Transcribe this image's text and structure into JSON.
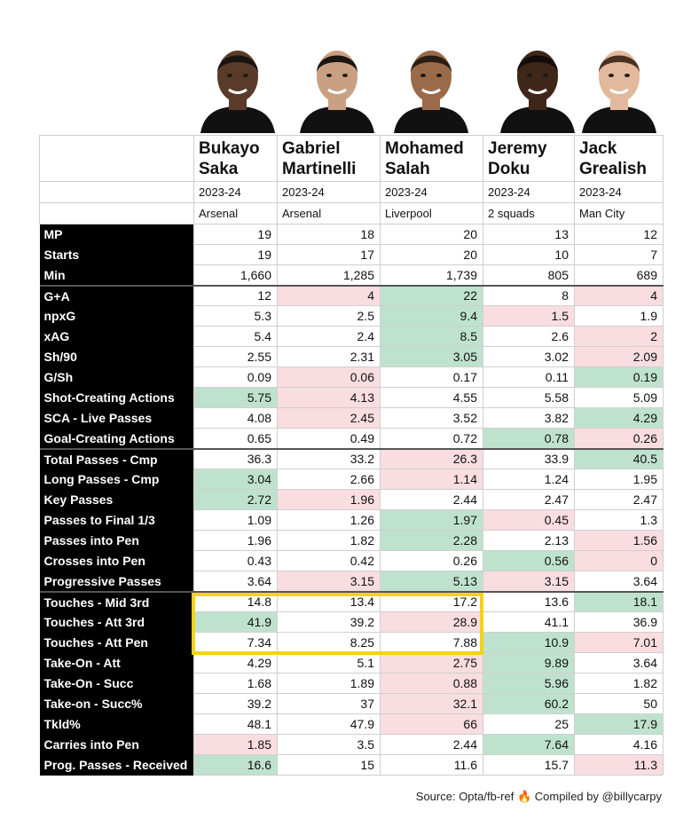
{
  "players": [
    {
      "first": "Bukayo",
      "last": "Saka",
      "season": "2023-24",
      "team": "Arsenal",
      "skin": "#5a3a28",
      "hair": "#1a1410"
    },
    {
      "first": "Gabriel",
      "last": "Martinelli",
      "season": "2023-24",
      "team": "Arsenal",
      "skin": "#c9a081",
      "hair": "#1c1510"
    },
    {
      "first": "Mohamed",
      "last": "Salah",
      "season": "2023-24",
      "team": "Liverpool",
      "skin": "#9b6a48",
      "hair": "#2a1d14"
    },
    {
      "first": "Jeremy",
      "last": "Doku",
      "season": "2023-24",
      "team": "2 squads",
      "skin": "#3e2619",
      "hair": "#120d0a"
    },
    {
      "first": "Jack",
      "last": "Grealish",
      "season": "2023-24",
      "team": "Man City",
      "skin": "#e2b99c",
      "hair": "#4a3020"
    }
  ],
  "groups": [
    {
      "rows": [
        {
          "label": "MP",
          "values": [
            "19",
            "18",
            "20",
            "13",
            "12"
          ],
          "shade": [
            "n",
            "n",
            "n",
            "n",
            "n"
          ]
        },
        {
          "label": "Starts",
          "values": [
            "19",
            "17",
            "20",
            "10",
            "7"
          ],
          "shade": [
            "n",
            "n",
            "n",
            "n",
            "n"
          ]
        },
        {
          "label": "Min",
          "values": [
            "1,660",
            "1,285",
            "1,739",
            "805",
            "689"
          ],
          "shade": [
            "n",
            "n",
            "n",
            "n",
            "n"
          ]
        }
      ]
    },
    {
      "rows": [
        {
          "label": "G+A",
          "values": [
            "12",
            "4",
            "22",
            "8",
            "4"
          ],
          "shade": [
            "n",
            "r",
            "g",
            "n",
            "r"
          ]
        },
        {
          "label": "npxG",
          "values": [
            "5.3",
            "2.5",
            "9.4",
            "1.5",
            "1.9"
          ],
          "shade": [
            "n",
            "n",
            "g",
            "r",
            "n"
          ]
        },
        {
          "label": "xAG",
          "values": [
            "5.4",
            "2.4",
            "8.5",
            "2.6",
            "2"
          ],
          "shade": [
            "n",
            "n",
            "g",
            "n",
            "r"
          ]
        },
        {
          "label": "Sh/90",
          "values": [
            "2.55",
            "2.31",
            "3.05",
            "3.02",
            "2.09"
          ],
          "shade": [
            "n",
            "n",
            "g",
            "n",
            "r"
          ]
        },
        {
          "label": "G/Sh",
          "values": [
            "0.09",
            "0.06",
            "0.17",
            "0.11",
            "0.19"
          ],
          "shade": [
            "n",
            "r",
            "n",
            "n",
            "g"
          ]
        },
        {
          "label": "Shot-Creating Actions",
          "values": [
            "5.75",
            "4.13",
            "4.55",
            "5.58",
            "5.09"
          ],
          "shade": [
            "g",
            "r",
            "n",
            "n",
            "n"
          ]
        },
        {
          "label": "SCA - Live Passes",
          "values": [
            "4.08",
            "2.45",
            "3.52",
            "3.82",
            "4.29"
          ],
          "shade": [
            "n",
            "r",
            "n",
            "n",
            "g"
          ]
        },
        {
          "label": "Goal-Creating Actions",
          "values": [
            "0.65",
            "0.49",
            "0.72",
            "0.78",
            "0.26"
          ],
          "shade": [
            "n",
            "n",
            "n",
            "g",
            "r"
          ]
        }
      ]
    },
    {
      "rows": [
        {
          "label": "Total Passes - Cmp",
          "values": [
            "36.3",
            "33.2",
            "26.3",
            "33.9",
            "40.5"
          ],
          "shade": [
            "n",
            "n",
            "r",
            "n",
            "g"
          ]
        },
        {
          "label": "Long Passes - Cmp",
          "values": [
            "3.04",
            "2.66",
            "1.14",
            "1.24",
            "1.95"
          ],
          "shade": [
            "g",
            "n",
            "r",
            "n",
            "n"
          ]
        },
        {
          "label": "Key Passes",
          "values": [
            "2.72",
            "1.96",
            "2.44",
            "2.47",
            "2.47"
          ],
          "shade": [
            "g",
            "r",
            "n",
            "n",
            "n"
          ]
        },
        {
          "label": "Passes to Final 1/3",
          "values": [
            "1.09",
            "1.26",
            "1.97",
            "0.45",
            "1.3"
          ],
          "shade": [
            "n",
            "n",
            "g",
            "r",
            "n"
          ]
        },
        {
          "label": "Passes into Pen",
          "values": [
            "1.96",
            "1.82",
            "2.28",
            "2.13",
            "1.56"
          ],
          "shade": [
            "n",
            "n",
            "g",
            "n",
            "r"
          ]
        },
        {
          "label": "Crosses into Pen",
          "values": [
            "0.43",
            "0.42",
            "0.26",
            "0.56",
            "0"
          ],
          "shade": [
            "n",
            "n",
            "n",
            "g",
            "r"
          ]
        },
        {
          "label": "Progressive Passes",
          "values": [
            "3.64",
            "3.15",
            "5.13",
            "3.15",
            "3.64"
          ],
          "shade": [
            "n",
            "r",
            "g",
            "r",
            "n"
          ]
        }
      ]
    },
    {
      "rows": [
        {
          "label": "Touches - Mid 3rd",
          "values": [
            "14.8",
            "13.4",
            "17.2",
            "13.6",
            "18.1"
          ],
          "shade": [
            "n",
            "n",
            "n",
            "n",
            "g"
          ]
        },
        {
          "label": "Touches - Att 3rd",
          "values": [
            "41.9",
            "39.2",
            "28.9",
            "41.1",
            "36.9"
          ],
          "shade": [
            "g",
            "n",
            "r",
            "n",
            "n"
          ]
        },
        {
          "label": "Touches - Att Pen",
          "values": [
            "7.34",
            "8.25",
            "7.88",
            "10.9",
            "7.01"
          ],
          "shade": [
            "n",
            "n",
            "n",
            "g",
            "r"
          ]
        },
        {
          "label": "Take-On - Att",
          "values": [
            "4.29",
            "5.1",
            "2.75",
            "9.89",
            "3.64"
          ],
          "shade": [
            "n",
            "n",
            "r",
            "g",
            "n"
          ]
        },
        {
          "label": "Take-On - Succ",
          "values": [
            "1.68",
            "1.89",
            "0.88",
            "5.96",
            "1.82"
          ],
          "shade": [
            "n",
            "n",
            "r",
            "g",
            "n"
          ]
        },
        {
          "label": "Take-on - Succ%",
          "values": [
            "39.2",
            "37",
            "32.1",
            "60.2",
            "50"
          ],
          "shade": [
            "n",
            "n",
            "r",
            "g",
            "n"
          ]
        },
        {
          "label": "Tkld%",
          "values": [
            "48.1",
            "47.9",
            "66",
            "25",
            "17.9"
          ],
          "shade": [
            "n",
            "n",
            "r",
            "n",
            "g"
          ]
        },
        {
          "label": "Carries into Pen",
          "values": [
            "1.85",
            "3.5",
            "2.44",
            "7.64",
            "4.16"
          ],
          "shade": [
            "r",
            "n",
            "n",
            "g",
            "n"
          ]
        },
        {
          "label": "Prog. Passes - Received",
          "values": [
            "16.6",
            "15",
            "11.6",
            "15.7",
            "11.3"
          ],
          "shade": [
            "g",
            "n",
            "n",
            "n",
            "r"
          ]
        }
      ]
    }
  ],
  "source": "Source: Opta/fb-ref 🔥 Compiled by @billycarpy",
  "colors": {
    "better": "#bfe2cf",
    "worse": "#f9dde0",
    "highlight": "#f5d311",
    "label_bg": "#000000"
  }
}
